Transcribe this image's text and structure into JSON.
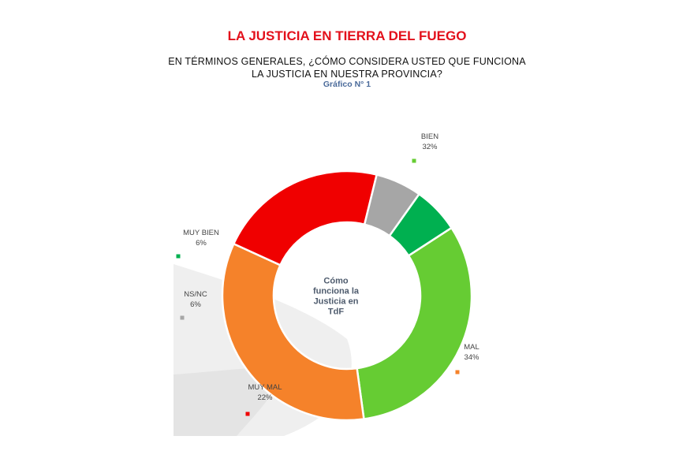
{
  "header": {
    "title": "LA JUSTICIA EN TIERRA DEL FUEGO",
    "question_line1": "EN TÉRMINOS GENERALES, ¿CÓMO CONSIDERA USTED QUE FUNCIONA",
    "question_line2": "LA JUSTICIA EN NUESTRA PROVINCIA?",
    "chart_number": "Gráfico N° 1"
  },
  "chart_data": {
    "type": "pie",
    "donut": true,
    "center_label": [
      "Cómo",
      "funciona la",
      "Justicia en",
      "TdF"
    ],
    "slices": [
      {
        "label": "BIEN",
        "value": 32,
        "value_label": "32%",
        "color": "#66cc33"
      },
      {
        "label": "MAL",
        "value": 34,
        "value_label": "34%",
        "color": "#f5822a"
      },
      {
        "label": "MUY MAL",
        "value": 22,
        "value_label": "22%",
        "color": "#f00000"
      },
      {
        "label": "NS/NC",
        "value": 6,
        "value_label": "6%",
        "color": "#a6a6a6"
      },
      {
        "label": "MUY BIEN",
        "value": 6,
        "value_label": "6%",
        "color": "#00b050"
      }
    ]
  }
}
